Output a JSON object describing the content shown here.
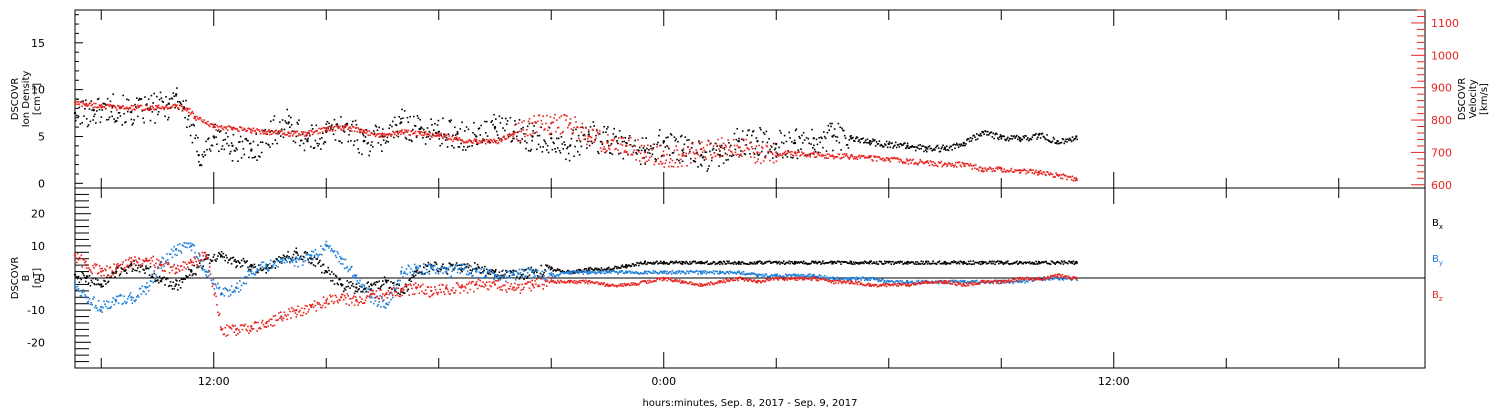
{
  "figure": {
    "xlabel": "hours:minutes, Sep.  8, 2017 - Sep.  9, 2017",
    "x_tick_labels": [
      "12:00",
      "0:00",
      "12:00"
    ],
    "background": "#ffffff"
  },
  "chart_data": [
    {
      "type": "scatter",
      "panel": "top",
      "ylabel_left": [
        "DSCOVR",
        "Ion Density",
        "[cm⁻³]"
      ],
      "ylabel_right": [
        "DSCOVR",
        "Velocity",
        "[km/s]"
      ],
      "x_unit": "hours since 2017-09-08 00:00",
      "xlim": [
        8.3,
        44.3
      ],
      "ylim_left": [
        -0.5,
        18.5
      ],
      "yticks_left": [
        0,
        5,
        10,
        15
      ],
      "ylim_right": [
        590,
        1140
      ],
      "yticks_right": [
        600,
        700,
        800,
        900,
        1000,
        1100
      ],
      "grid": false,
      "series": [
        {
          "name": "Ion Density",
          "color": "#000000",
          "axis": "left",
          "x": [
            8.3,
            8.8,
            9.3,
            9.8,
            10.3,
            10.8,
            11.0,
            11.2,
            11.6,
            12.0,
            12.5,
            13.0,
            13.5,
            14.0,
            14.5,
            15.0,
            15.5,
            16.0,
            16.5,
            17.0,
            17.5,
            18.0,
            18.5,
            19.0,
            19.5,
            20.0,
            20.5,
            21.0,
            21.5,
            22.0,
            22.5,
            23.0,
            23.5,
            24.0,
            24.5,
            25.0,
            25.5,
            26.0,
            26.5,
            27.0,
            27.5,
            28.0,
            28.5,
            29.0,
            29.5,
            30.0,
            30.5,
            31.0,
            31.5,
            32.0,
            32.5,
            33.0,
            33.5,
            34.0,
            34.5,
            35.0
          ],
          "y": [
            7.5,
            7.8,
            8.2,
            7.6,
            8.0,
            8.5,
            9.5,
            8.0,
            3.0,
            5.0,
            4.0,
            3.5,
            5.5,
            6.5,
            4.5,
            5.5,
            6.0,
            4.5,
            5.0,
            6.5,
            5.8,
            5.5,
            5.3,
            5.0,
            6.0,
            5.5,
            5.0,
            4.8,
            4.0,
            5.2,
            4.5,
            4.0,
            3.5,
            4.5,
            3.5,
            3.0,
            3.0,
            4.5,
            4.5,
            4.2,
            4.3,
            4.8,
            5.0,
            4.8,
            4.5,
            4.2,
            4.0,
            3.8,
            3.8,
            4.3,
            5.5,
            5.0,
            4.8,
            5.2,
            4.5,
            5.0
          ]
        },
        {
          "name": "Velocity",
          "color": "#e8231f",
          "axis": "right",
          "x": [
            8.3,
            8.6,
            9.0,
            9.5,
            10.0,
            10.5,
            11.0,
            11.3,
            11.5,
            12.0,
            12.5,
            13.0,
            13.5,
            14.0,
            14.5,
            15.0,
            15.5,
            16.0,
            16.5,
            17.0,
            17.5,
            18.0,
            18.5,
            19.0,
            19.5,
            20.0,
            20.5,
            21.0,
            21.5,
            22.0,
            22.5,
            23.0,
            23.5,
            24.0,
            24.5,
            25.0,
            25.5,
            26.0,
            26.5,
            27.0,
            27.5,
            28.0,
            28.5,
            29.0,
            29.5,
            30.0,
            30.5,
            31.0,
            31.5,
            32.0,
            32.5,
            33.0,
            33.5,
            34.0,
            34.5,
            35.0
          ],
          "y": [
            855,
            850,
            845,
            840,
            840,
            840,
            845,
            835,
            810,
            780,
            775,
            770,
            765,
            760,
            760,
            775,
            780,
            765,
            755,
            765,
            760,
            755,
            740,
            738,
            735,
            760,
            790,
            790,
            790,
            750,
            730,
            720,
            700,
            690,
            690,
            710,
            720,
            715,
            700,
            700,
            700,
            695,
            690,
            690,
            685,
            680,
            675,
            670,
            665,
            665,
            650,
            650,
            645,
            640,
            630,
            620
          ]
        }
      ]
    },
    {
      "type": "scatter",
      "panel": "bottom",
      "ylabel_left": [
        "DSCOVR",
        "B",
        "[nT]"
      ],
      "x_unit": "hours since 2017-09-08 00:00",
      "xlim": [
        8.3,
        44.3
      ],
      "ylim": [
        -28,
        28
      ],
      "yticks": [
        -20,
        -10,
        0,
        10,
        20
      ],
      "zero_line": true,
      "grid": false,
      "legend": "right",
      "series": [
        {
          "name": "Bx",
          "label_main": "B",
          "label_sub": "x",
          "color": "#000000",
          "x": [
            8.3,
            8.6,
            9.0,
            9.4,
            9.8,
            10.2,
            10.6,
            11.0,
            11.4,
            11.8,
            12.2,
            12.6,
            13.0,
            13.4,
            13.8,
            14.2,
            14.6,
            15.0,
            15.4,
            15.8,
            16.2,
            16.6,
            17.0,
            17.4,
            17.8,
            18.2,
            18.6,
            19.0,
            19.5,
            20.0,
            20.5,
            21.0,
            21.5,
            22.0,
            22.5,
            23.0,
            23.5,
            24.0,
            24.5,
            25.0,
            25.5,
            26.0,
            26.5,
            27.0,
            27.5,
            28.0,
            28.5,
            29.0,
            29.5,
            30.0,
            30.5,
            31.0,
            31.5,
            32.0,
            32.5,
            33.0,
            33.5,
            34.0,
            34.5,
            35.0
          ],
          "y": [
            1,
            0,
            -2,
            2,
            4,
            3,
            -1,
            -2,
            2,
            6,
            7,
            5,
            4,
            3,
            6,
            8,
            6,
            2,
            -2,
            -3,
            -2,
            -1,
            -4,
            2,
            4,
            3,
            4,
            3,
            2,
            1,
            2,
            3,
            2,
            3,
            3,
            4,
            5,
            5,
            5,
            5,
            5,
            5,
            5,
            5,
            5,
            5,
            5,
            5,
            5,
            5,
            5,
            5,
            5,
            5,
            5,
            5,
            5,
            5,
            5,
            5
          ]
        },
        {
          "name": "By",
          "label_main": "B",
          "label_sub": "y",
          "color": "#1f7fd8",
          "x": [
            8.3,
            8.6,
            9.0,
            9.4,
            9.8,
            10.2,
            10.6,
            11.0,
            11.4,
            11.8,
            12.2,
            12.6,
            13.0,
            13.4,
            13.8,
            14.2,
            14.6,
            15.0,
            15.4,
            15.8,
            16.2,
            16.6,
            17.0,
            17.4,
            17.8,
            18.2,
            18.6,
            19.0,
            19.5,
            20.0,
            20.5,
            21.0,
            21.5,
            22.0,
            22.5,
            23.0,
            23.5,
            24.0,
            24.5,
            25.0,
            25.5,
            26.0,
            26.5,
            27.0,
            27.5,
            28.0,
            28.5,
            29.0,
            29.5,
            30.0,
            30.5,
            31.0,
            31.5,
            32.0,
            32.5,
            33.0,
            33.5,
            34.0,
            34.5,
            35.0
          ],
          "y": [
            -2,
            -6,
            -9,
            -7,
            -6,
            -3,
            5,
            9,
            10,
            2,
            -5,
            -3,
            2,
            4,
            6,
            5,
            7,
            10,
            6,
            0,
            -6,
            -8,
            2,
            3,
            3,
            2,
            3,
            2,
            1,
            1,
            2,
            1,
            2,
            2,
            2,
            2,
            2,
            2,
            2,
            2,
            2,
            2,
            1,
            1,
            1,
            1,
            0,
            0,
            0,
            -1,
            -1,
            -1,
            -1,
            -1,
            -1,
            -1,
            -1,
            0,
            0,
            0
          ]
        },
        {
          "name": "Bz",
          "label_main": "B",
          "label_sub": "z",
          "color": "#e8231f",
          "x": [
            8.3,
            8.6,
            9.0,
            9.4,
            9.8,
            10.2,
            10.6,
            11.0,
            11.4,
            11.8,
            12.2,
            12.6,
            13.0,
            13.4,
            13.8,
            14.2,
            14.6,
            15.0,
            15.4,
            15.8,
            16.2,
            16.6,
            17.0,
            17.4,
            17.8,
            18.2,
            18.6,
            19.0,
            19.5,
            20.0,
            20.5,
            21.0,
            21.5,
            22.0,
            22.5,
            23.0,
            23.5,
            24.0,
            24.5,
            25.0,
            25.5,
            26.0,
            26.5,
            27.0,
            27.5,
            28.0,
            28.5,
            29.0,
            29.5,
            30.0,
            30.5,
            31.0,
            31.5,
            32.0,
            32.5,
            33.0,
            33.5,
            34.0,
            34.5,
            35.0
          ],
          "y": [
            7,
            4,
            2,
            3,
            5,
            6,
            4,
            3,
            5,
            7,
            -16,
            -16,
            -15,
            -14,
            -12,
            -10,
            -9,
            -7,
            -6,
            -7,
            -5,
            -5,
            -4,
            -3,
            -4,
            -3,
            -3,
            -2,
            -2,
            -3,
            -2,
            -1,
            -1,
            -1,
            -2,
            -2,
            -1,
            0,
            -1,
            -2,
            -1,
            0,
            -1,
            0,
            0,
            0,
            -1,
            -1,
            -2,
            -2,
            -2,
            -1,
            -1,
            -2,
            -1,
            -1,
            0,
            0,
            1,
            0
          ]
        }
      ]
    }
  ]
}
